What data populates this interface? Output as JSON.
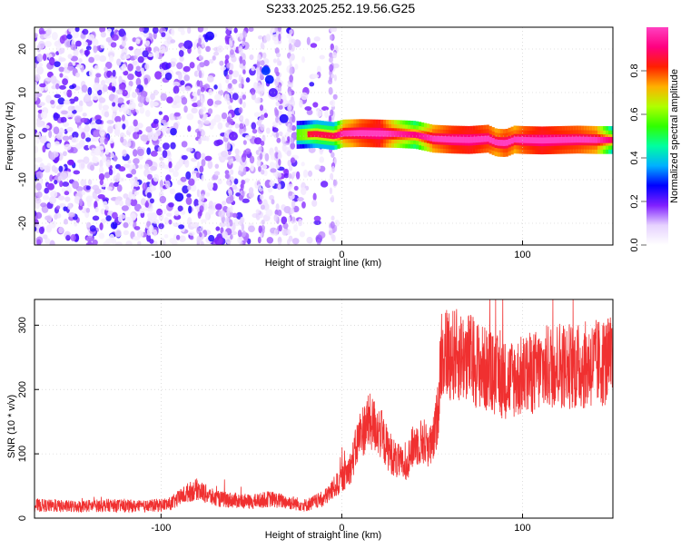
{
  "title": "S233.2025.252.19.56.G25",
  "chart_data": [
    {
      "type": "heatmap",
      "xlabel": "Height of straight line (km)",
      "ylabel": "Frequency (Hz)",
      "xlim": [
        -170,
        150
      ],
      "ylim": [
        -25,
        25
      ],
      "xticks": [
        -100,
        0,
        100
      ],
      "yticks": [
        -20,
        -10,
        0,
        10,
        20
      ],
      "grid": true,
      "colorbar": {
        "label": "Normalized spectral amplitude",
        "range": [
          0,
          1
        ],
        "ticks": [
          "0.0",
          "0.2",
          "0.4",
          "0.6",
          "0.8"
        ],
        "colormap": [
          "#ffffff",
          "#e6d2ff",
          "#8020ff",
          "#0000ff",
          "#00b0ff",
          "#00ffa0",
          "#30ff00",
          "#b0ff00",
          "#ffb000",
          "#ff2000",
          "#ff0080",
          "#ff40c0"
        ]
      },
      "tone": {
        "description": "Narrow-band tone near 0 Hz from -25 km to 150 km",
        "x": [
          -25,
          -15,
          -5,
          0,
          10,
          20,
          30,
          40,
          50,
          60,
          70,
          80,
          85,
          90,
          95,
          100,
          110,
          120,
          130,
          140,
          150
        ],
        "freq": [
          0.3,
          0.5,
          0.0,
          0.6,
          0.7,
          0.6,
          0.5,
          0.3,
          -0.6,
          -0.8,
          -0.9,
          -0.6,
          -1.5,
          -1.6,
          -0.8,
          -0.9,
          -1.0,
          -0.9,
          -0.8,
          -0.9,
          -0.9
        ],
        "amplitude": [
          0.35,
          0.5,
          0.5,
          0.8,
          0.9,
          0.95,
          0.75,
          0.6,
          0.85,
          0.92,
          0.95,
          0.9,
          0.85,
          0.9,
          0.85,
          0.9,
          0.95,
          0.92,
          0.9,
          0.85,
          0.5
        ]
      }
    },
    {
      "type": "line",
      "xlabel": "Height of straight line (km)",
      "ylabel": "SNR (10 * v/v)",
      "xlim": [
        -170,
        150
      ],
      "ylim": [
        0,
        340
      ],
      "xticks": [
        -100,
        0,
        100
      ],
      "yticks": [
        0,
        100,
        200,
        300
      ],
      "grid": true,
      "color": "#f03030",
      "x": [
        -170,
        -150,
        -130,
        -110,
        -95,
        -85,
        -80,
        -70,
        -60,
        -50,
        -40,
        -30,
        -20,
        -10,
        0,
        5,
        10,
        15,
        20,
        25,
        30,
        35,
        40,
        45,
        50,
        53,
        55,
        60,
        70,
        80,
        90,
        100,
        110,
        120,
        130,
        140,
        150
      ],
      "y": [
        20,
        18,
        20,
        18,
        22,
        40,
        45,
        30,
        28,
        25,
        30,
        25,
        20,
        30,
        60,
        80,
        130,
        150,
        140,
        110,
        90,
        80,
        115,
        120,
        110,
        160,
        260,
        255,
        250,
        230,
        215,
        220,
        230,
        240,
        235,
        240,
        245
      ]
    }
  ]
}
